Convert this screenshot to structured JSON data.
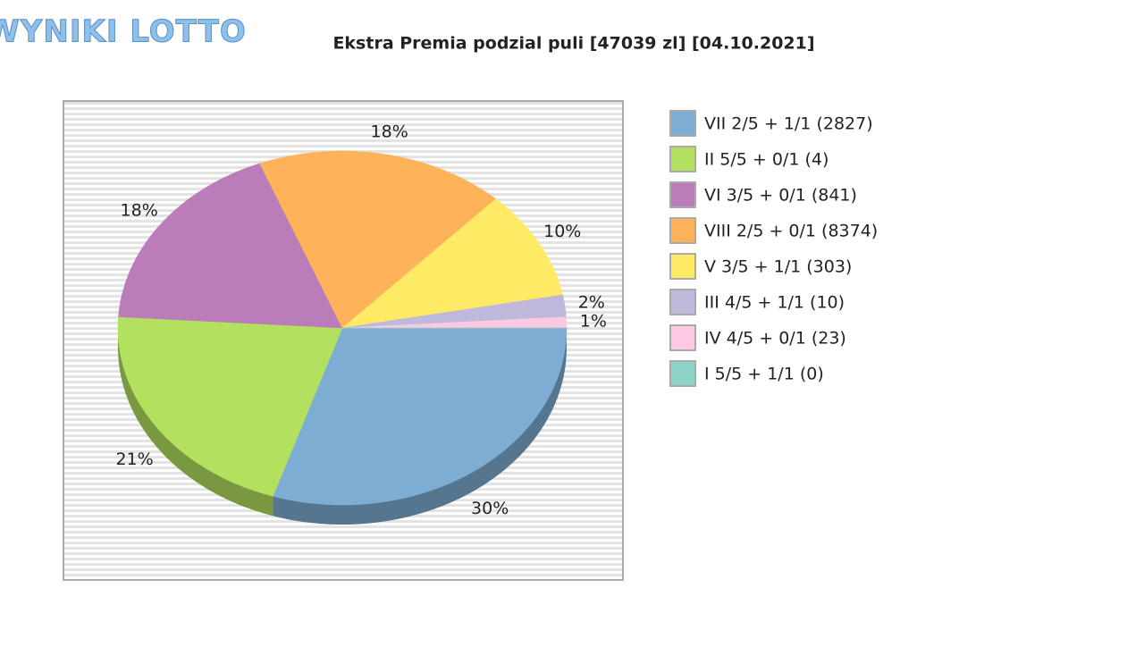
{
  "logo": "WYNIKI LOTTO",
  "chart_data": {
    "type": "pie",
    "title": "Ekstra Premia podzial puli [47039 zl] [04.10.2021]",
    "categories": [
      "VII 2/5 + 1/1 (2827)",
      "II 5/5 + 0/1 (4)",
      "VI 3/5 + 0/1 (841)",
      "VIII 2/5 + 0/1 (8374)",
      "V 3/5 + 1/1 (303)",
      "III 4/5 + 1/1 (10)",
      "IV 4/5 + 0/1 (23)",
      "I 5/5 + 1/1 (0)"
    ],
    "values": [
      30,
      21,
      18,
      18,
      10,
      2,
      1,
      0
    ],
    "value_labels": [
      "30%",
      "21%",
      "18%",
      "18%",
      "10%",
      "2%",
      "1%",
      null
    ],
    "colors": [
      "#7eadd4",
      "#b3e05e",
      "#bb7dba",
      "#feb35b",
      "#ffea65",
      "#beb9da",
      "#fdc8e2",
      "#8dd4c6"
    ]
  }
}
